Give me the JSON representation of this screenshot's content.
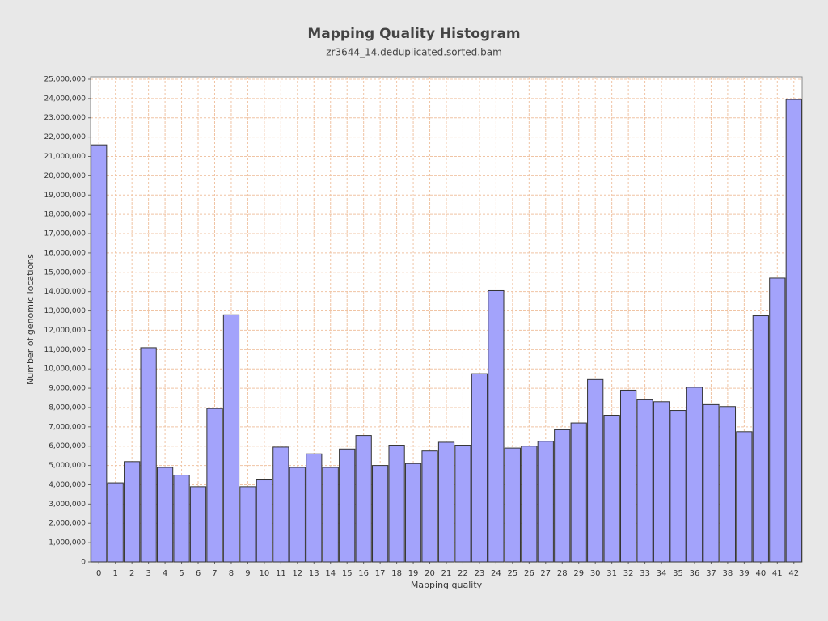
{
  "chart_data": {
    "type": "bar",
    "title": "Mapping Quality Histogram",
    "subtitle": "zr3644_14.deduplicated.sorted.bam",
    "x_label": "Mapping quality",
    "y_label": "Number of genomic locations",
    "categories": [
      0,
      1,
      2,
      3,
      4,
      5,
      6,
      7,
      8,
      9,
      10,
      11,
      12,
      13,
      14,
      15,
      16,
      17,
      18,
      19,
      20,
      21,
      22,
      23,
      24,
      25,
      26,
      27,
      28,
      29,
      30,
      31,
      32,
      33,
      34,
      35,
      36,
      37,
      38,
      39,
      40,
      41,
      42
    ],
    "values": [
      21600000,
      4100000,
      5200000,
      11100000,
      4900000,
      4500000,
      3900000,
      7950000,
      12800000,
      3900000,
      4250000,
      5950000,
      4900000,
      5600000,
      4900000,
      5850000,
      6550000,
      5000000,
      6050000,
      5100000,
      5750000,
      6200000,
      6050000,
      9750000,
      14050000,
      5900000,
      6000000,
      6250000,
      6850000,
      7200000,
      9450000,
      7600000,
      8900000,
      8400000,
      8300000,
      7850000,
      9050000,
      8150000,
      8050000,
      6750000,
      12750000,
      14700000,
      23950000
    ],
    "color": "#a3a3fb",
    "grid": true,
    "ylim": [
      0,
      25125000
    ],
    "yticks": [
      0,
      {
        "value": 1000000,
        "label": "1,000,000"
      },
      {
        "value": 2000000,
        "label": "2,000,000"
      },
      {
        "value": 3000000,
        "label": "3,000,000"
      },
      {
        "value": 4000000,
        "label": "4,000,000"
      },
      {
        "value": 5000000,
        "label": "5,000,000"
      },
      {
        "value": 6000000,
        "label": "6,000,000"
      },
      {
        "value": 7000000,
        "label": "7,000,000"
      },
      {
        "value": 8000000,
        "label": "8,000,000"
      },
      {
        "value": 9000000,
        "label": "9,000,000"
      },
      {
        "value": 10000000,
        "label": "10,000,000"
      },
      {
        "value": 11000000,
        "label": "11,000,000"
      },
      {
        "value": 12000000,
        "label": "12,000,000"
      },
      {
        "value": 13000000,
        "label": "13,000,000"
      },
      {
        "value": 14000000,
        "label": "14,000,000"
      },
      {
        "value": 15000000,
        "label": "15,000,000"
      },
      {
        "value": 16000000,
        "label": "16,000,000"
      },
      {
        "value": 17000000,
        "label": "17,000,000"
      },
      {
        "value": 18000000,
        "label": "18,000,000"
      },
      {
        "value": 19000000,
        "label": "19,000,000"
      },
      {
        "value": 20000000,
        "label": "20,000,000"
      },
      {
        "value": 21000000,
        "label": "21,000,000"
      },
      {
        "value": 22000000,
        "label": "22,000,000"
      },
      {
        "value": 23000000,
        "label": "23,000,000"
      },
      {
        "value": 24000000,
        "label": "24,000,000"
      },
      {
        "value": 25000000,
        "label": "25,000,000"
      }
    ]
  }
}
